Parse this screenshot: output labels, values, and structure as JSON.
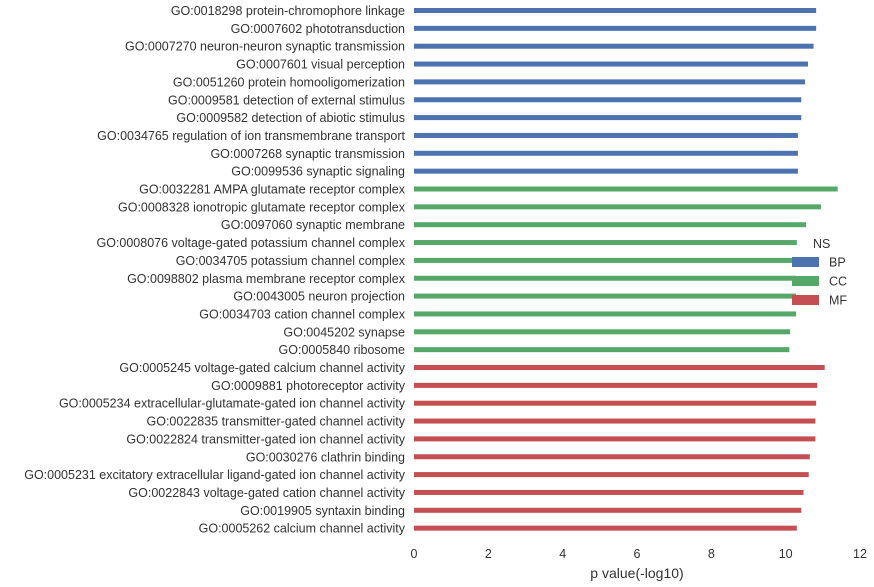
{
  "chart_data": {
    "type": "bar",
    "orientation": "horizontal",
    "xlabel": "p value(-log10)",
    "ylabel": "",
    "xlim": [
      0,
      12
    ],
    "xticks": [
      0,
      2,
      4,
      6,
      8,
      10,
      12
    ],
    "grid": false,
    "legend": {
      "title": "NS",
      "placement": "center-right"
    },
    "categories": [
      "GO:0018298 protein-chromophore linkage",
      "GO:0007602 phototransduction",
      "GO:0007270 neuron-neuron synaptic transmission",
      "GO:0007601 visual perception",
      "GO:0051260 protein homooligomerization",
      "GO:0009581 detection of external stimulus",
      "GO:0009582 detection of abiotic stimulus",
      "GO:0034765 regulation of ion transmembrane transport",
      "GO:0007268 synaptic transmission",
      "GO:0099536 synaptic signaling",
      "GO:0032281 AMPA glutamate receptor complex",
      "GO:0008328 ionotropic glutamate receptor complex",
      "GO:0097060 synaptic membrane",
      "GO:0008076 voltage-gated potassium channel complex",
      "GO:0034705 potassium channel complex",
      "GO:0098802 plasma membrane receptor complex",
      "GO:0043005 neuron projection",
      "GO:0034703 cation channel complex",
      "GO:0045202 synapse",
      "GO:0005840 ribosome",
      "GO:0005245 voltage-gated calcium channel activity",
      "GO:0009881 photoreceptor activity",
      "GO:0005234 extracellular-glutamate-gated ion channel activity",
      "GO:0022835 transmitter-gated channel activity",
      "GO:0022824 transmitter-gated ion channel activity",
      "GO:0030276 clathrin binding",
      "GO:0005231 excitatory extracellular ligand-gated ion channel activity",
      "GO:0022843 voltage-gated cation channel activity",
      "GO:0019905 syntaxin binding",
      "GO:0005262 calcium channel activity"
    ],
    "values": [
      10.82,
      10.82,
      10.75,
      10.6,
      10.52,
      10.42,
      10.42,
      10.33,
      10.33,
      10.33,
      11.4,
      10.95,
      10.55,
      10.3,
      10.3,
      10.28,
      10.28,
      10.28,
      10.12,
      10.1,
      11.05,
      10.85,
      10.82,
      10.8,
      10.8,
      10.65,
      10.62,
      10.48,
      10.42,
      10.3
    ],
    "groups": [
      "BP",
      "BP",
      "BP",
      "BP",
      "BP",
      "BP",
      "BP",
      "BP",
      "BP",
      "BP",
      "CC",
      "CC",
      "CC",
      "CC",
      "CC",
      "CC",
      "CC",
      "CC",
      "CC",
      "CC",
      "MF",
      "MF",
      "MF",
      "MF",
      "MF",
      "MF",
      "MF",
      "MF",
      "MF",
      "MF"
    ],
    "series": [
      {
        "name": "BP",
        "color": "#4c72b0"
      },
      {
        "name": "CC",
        "color": "#55a868"
      },
      {
        "name": "MF",
        "color": "#c44e52"
      }
    ]
  }
}
